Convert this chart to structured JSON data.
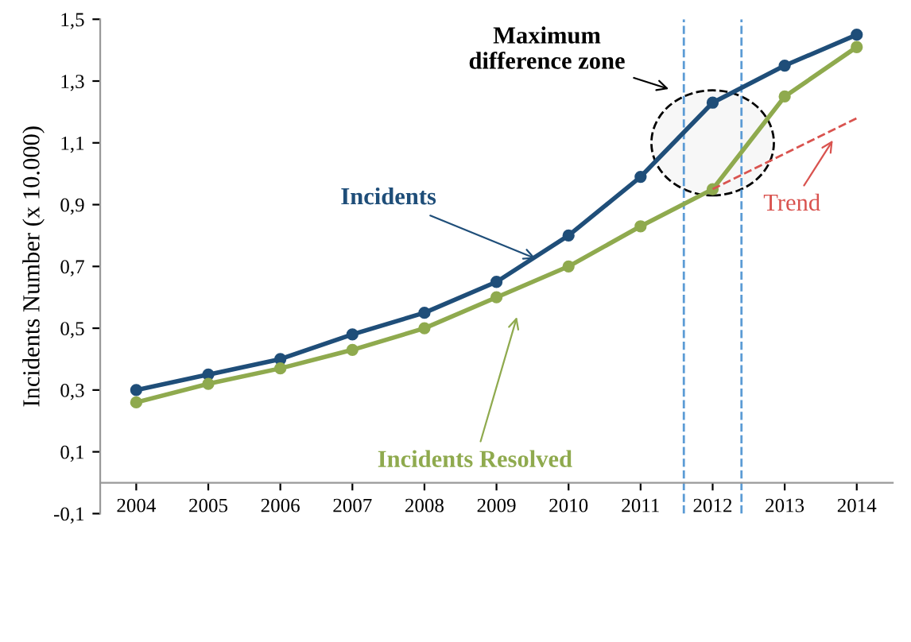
{
  "chart_data": {
    "type": "line",
    "x": [
      2004,
      2005,
      2006,
      2007,
      2008,
      2009,
      2010,
      2011,
      2012,
      2013,
      2014
    ],
    "series": [
      {
        "name": "Incidents",
        "color": "#1f4e79",
        "values": [
          0.3,
          0.35,
          0.4,
          0.48,
          0.55,
          0.65,
          0.8,
          0.99,
          1.23,
          1.35,
          1.45
        ]
      },
      {
        "name": "Incidents Resolved",
        "color": "#8faa4e",
        "values": [
          0.26,
          0.32,
          0.37,
          0.43,
          0.5,
          0.6,
          0.7,
          0.83,
          0.95,
          1.25,
          1.41
        ]
      },
      {
        "name": "Trend",
        "color": "#d9534f",
        "type": "line",
        "x": [
          2012,
          2014
        ],
        "values": [
          0.95,
          1.18
        ],
        "line_style": "dashed",
        "marker": "none"
      }
    ],
    "marker": "circle",
    "ylabel": "Incidents Number (x 10.000)",
    "xlim": [
      2003.5,
      2014.5
    ],
    "xticks": [
      2004,
      2005,
      2006,
      2007,
      2008,
      2009,
      2010,
      2011,
      2012,
      2013,
      2014
    ],
    "ylim": [
      -0.1,
      1.5
    ],
    "yticks": [
      {
        "value": -0.1,
        "label": "-0,1"
      },
      {
        "value": 0.1,
        "label": "0,1"
      },
      {
        "value": 0.3,
        "label": "0,3"
      },
      {
        "value": 0.5,
        "label": "0,5"
      },
      {
        "value": 0.7,
        "label": "0,7"
      },
      {
        "value": 0.9,
        "label": "0,9"
      },
      {
        "value": 1.1,
        "label": "1,1"
      },
      {
        "value": 1.3,
        "label": "1,3"
      },
      {
        "value": 1.5,
        "label": "1,5"
      }
    ],
    "ref_lines": [
      {
        "axis": "x",
        "value": 2011.6,
        "color": "#5b9bd5",
        "line_style": "dashed"
      },
      {
        "axis": "x",
        "value": 2012.4,
        "color": "#5b9bd5",
        "line_style": "dashed"
      }
    ],
    "annotations": [
      "Maximum difference zone"
    ],
    "grid": false
  }
}
